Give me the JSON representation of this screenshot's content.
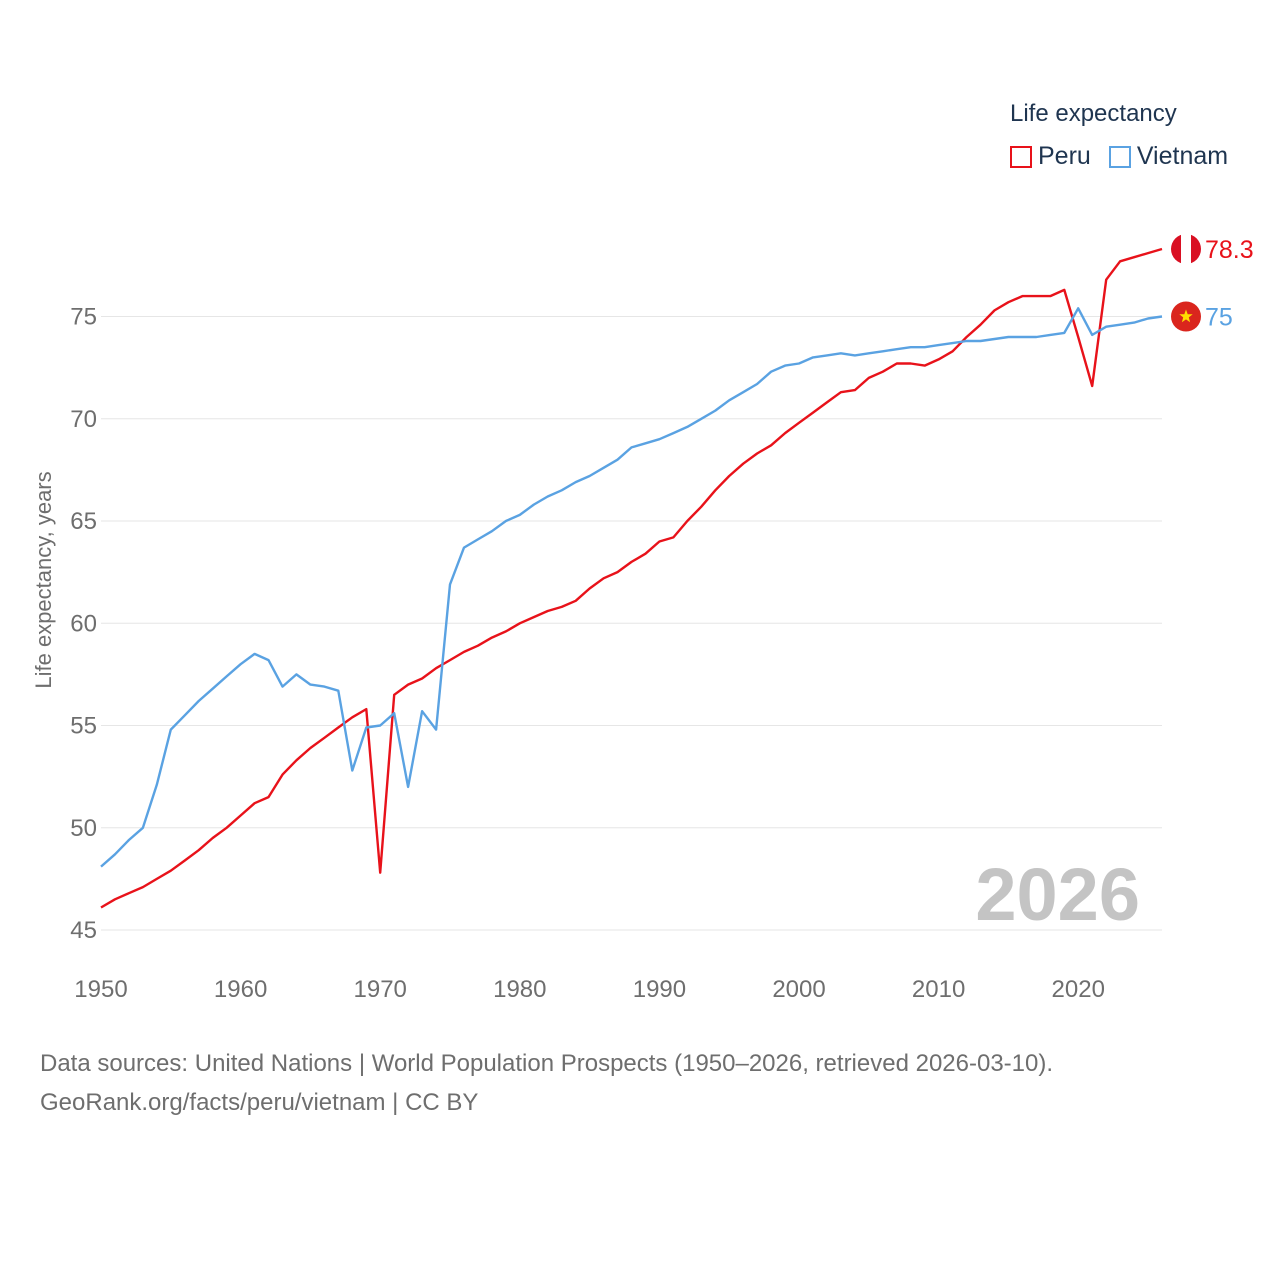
{
  "legend": {
    "title": "Life expectancy",
    "items": [
      {
        "label": "Peru",
        "color": "#e8121a"
      },
      {
        "label": "Vietnam",
        "color": "#5aa2e2"
      }
    ]
  },
  "footer": {
    "line1": "Data sources: United Nations | World Population Prospects (1950–2026, retrieved 2026-03-10).",
    "line2": "GeoRank.org/facts/peru/vietnam | CC BY"
  },
  "chart_data": {
    "type": "line",
    "title": "Life expectancy",
    "xlabel": "",
    "ylabel": "Life expectancy, years",
    "xlim": [
      1950,
      2026
    ],
    "ylim": [
      45,
      79
    ],
    "x_ticks": [
      1950,
      1960,
      1970,
      1980,
      1990,
      2000,
      2010,
      2020
    ],
    "y_ticks": [
      45,
      50,
      55,
      60,
      65,
      70,
      75
    ],
    "grid": true,
    "year_label": "2026",
    "x": [
      1950,
      1951,
      1952,
      1953,
      1954,
      1955,
      1956,
      1957,
      1958,
      1959,
      1960,
      1961,
      1962,
      1963,
      1964,
      1965,
      1966,
      1967,
      1968,
      1969,
      1970,
      1971,
      1972,
      1973,
      1974,
      1975,
      1976,
      1977,
      1978,
      1979,
      1980,
      1981,
      1982,
      1983,
      1984,
      1985,
      1986,
      1987,
      1988,
      1989,
      1990,
      1991,
      1992,
      1993,
      1994,
      1995,
      1996,
      1997,
      1998,
      1999,
      2000,
      2001,
      2002,
      2003,
      2004,
      2005,
      2006,
      2007,
      2008,
      2009,
      2010,
      2011,
      2012,
      2013,
      2014,
      2015,
      2016,
      2017,
      2018,
      2019,
      2020,
      2021,
      2022,
      2023,
      2024,
      2025,
      2026
    ],
    "series": [
      {
        "name": "Peru",
        "color": "#e8121a",
        "end_label": "78.3",
        "values": [
          46.1,
          46.5,
          46.8,
          47.1,
          47.5,
          47.9,
          48.4,
          48.9,
          49.5,
          50.0,
          50.6,
          51.2,
          51.5,
          52.6,
          53.3,
          53.9,
          54.4,
          54.9,
          55.4,
          55.8,
          47.8,
          56.5,
          57.0,
          57.3,
          57.8,
          58.2,
          58.6,
          58.9,
          59.3,
          59.6,
          60.0,
          60.3,
          60.6,
          60.8,
          61.1,
          61.7,
          62.2,
          62.5,
          63.0,
          63.4,
          64.0,
          64.2,
          65.0,
          65.7,
          66.5,
          67.2,
          67.8,
          68.3,
          68.7,
          69.3,
          69.8,
          70.3,
          70.8,
          71.3,
          71.4,
          72.0,
          72.3,
          72.7,
          72.7,
          72.6,
          72.9,
          73.3,
          74.0,
          74.6,
          75.3,
          75.7,
          76.0,
          76.0,
          76.0,
          76.3,
          74.0,
          71.6,
          76.8,
          77.7,
          77.9,
          78.1,
          78.3
        ]
      },
      {
        "name": "Vietnam",
        "color": "#5aa2e2",
        "end_label": "75",
        "values": [
          48.1,
          48.7,
          49.4,
          50.0,
          52.1,
          54.8,
          55.5,
          56.2,
          56.8,
          57.4,
          58.0,
          58.5,
          58.2,
          56.9,
          57.5,
          57.0,
          56.9,
          56.7,
          52.8,
          54.9,
          55.0,
          55.6,
          52.0,
          55.7,
          54.8,
          61.9,
          63.7,
          64.1,
          64.5,
          65.0,
          65.3,
          65.8,
          66.2,
          66.5,
          66.9,
          67.2,
          67.6,
          68.0,
          68.6,
          68.8,
          69.0,
          69.3,
          69.6,
          70.0,
          70.4,
          70.9,
          71.3,
          71.7,
          72.3,
          72.6,
          72.7,
          73.0,
          73.1,
          73.2,
          73.1,
          73.2,
          73.3,
          73.4,
          73.5,
          73.5,
          73.6,
          73.7,
          73.8,
          73.8,
          73.9,
          74.0,
          74.0,
          74.0,
          74.1,
          74.2,
          75.4,
          74.1,
          74.5,
          74.6,
          74.7,
          74.9,
          75.0
        ]
      }
    ]
  }
}
